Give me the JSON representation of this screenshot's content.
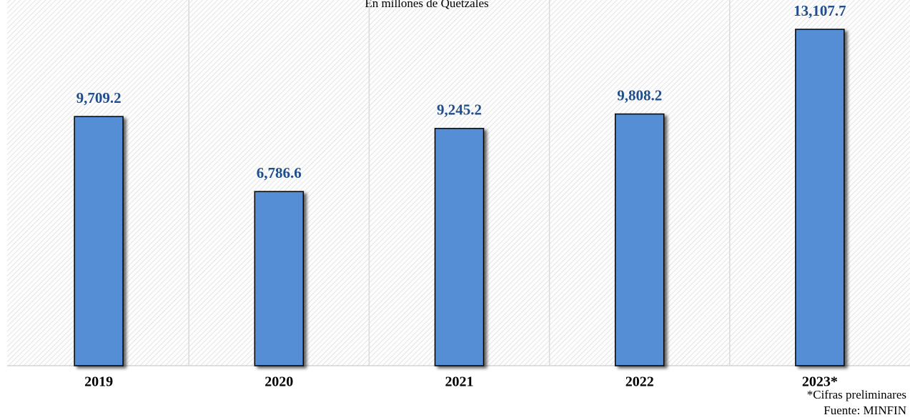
{
  "chart_data": {
    "type": "bar",
    "subtitle": "En millones de Quetzales",
    "categories": [
      "2019",
      "2020",
      "2021",
      "2022",
      "2023*"
    ],
    "values": [
      9709.2,
      6786.6,
      9245.2,
      9808.2,
      13107.7
    ],
    "value_labels": [
      "9,709.2",
      "6,786.6",
      "9,245.2",
      "9,808.2",
      "13,107.7"
    ],
    "color": "#558ed5",
    "ylim": [
      0,
      14000
    ],
    "notes": [
      "*Cifras preliminares",
      "Fuente: MINFIN"
    ]
  }
}
